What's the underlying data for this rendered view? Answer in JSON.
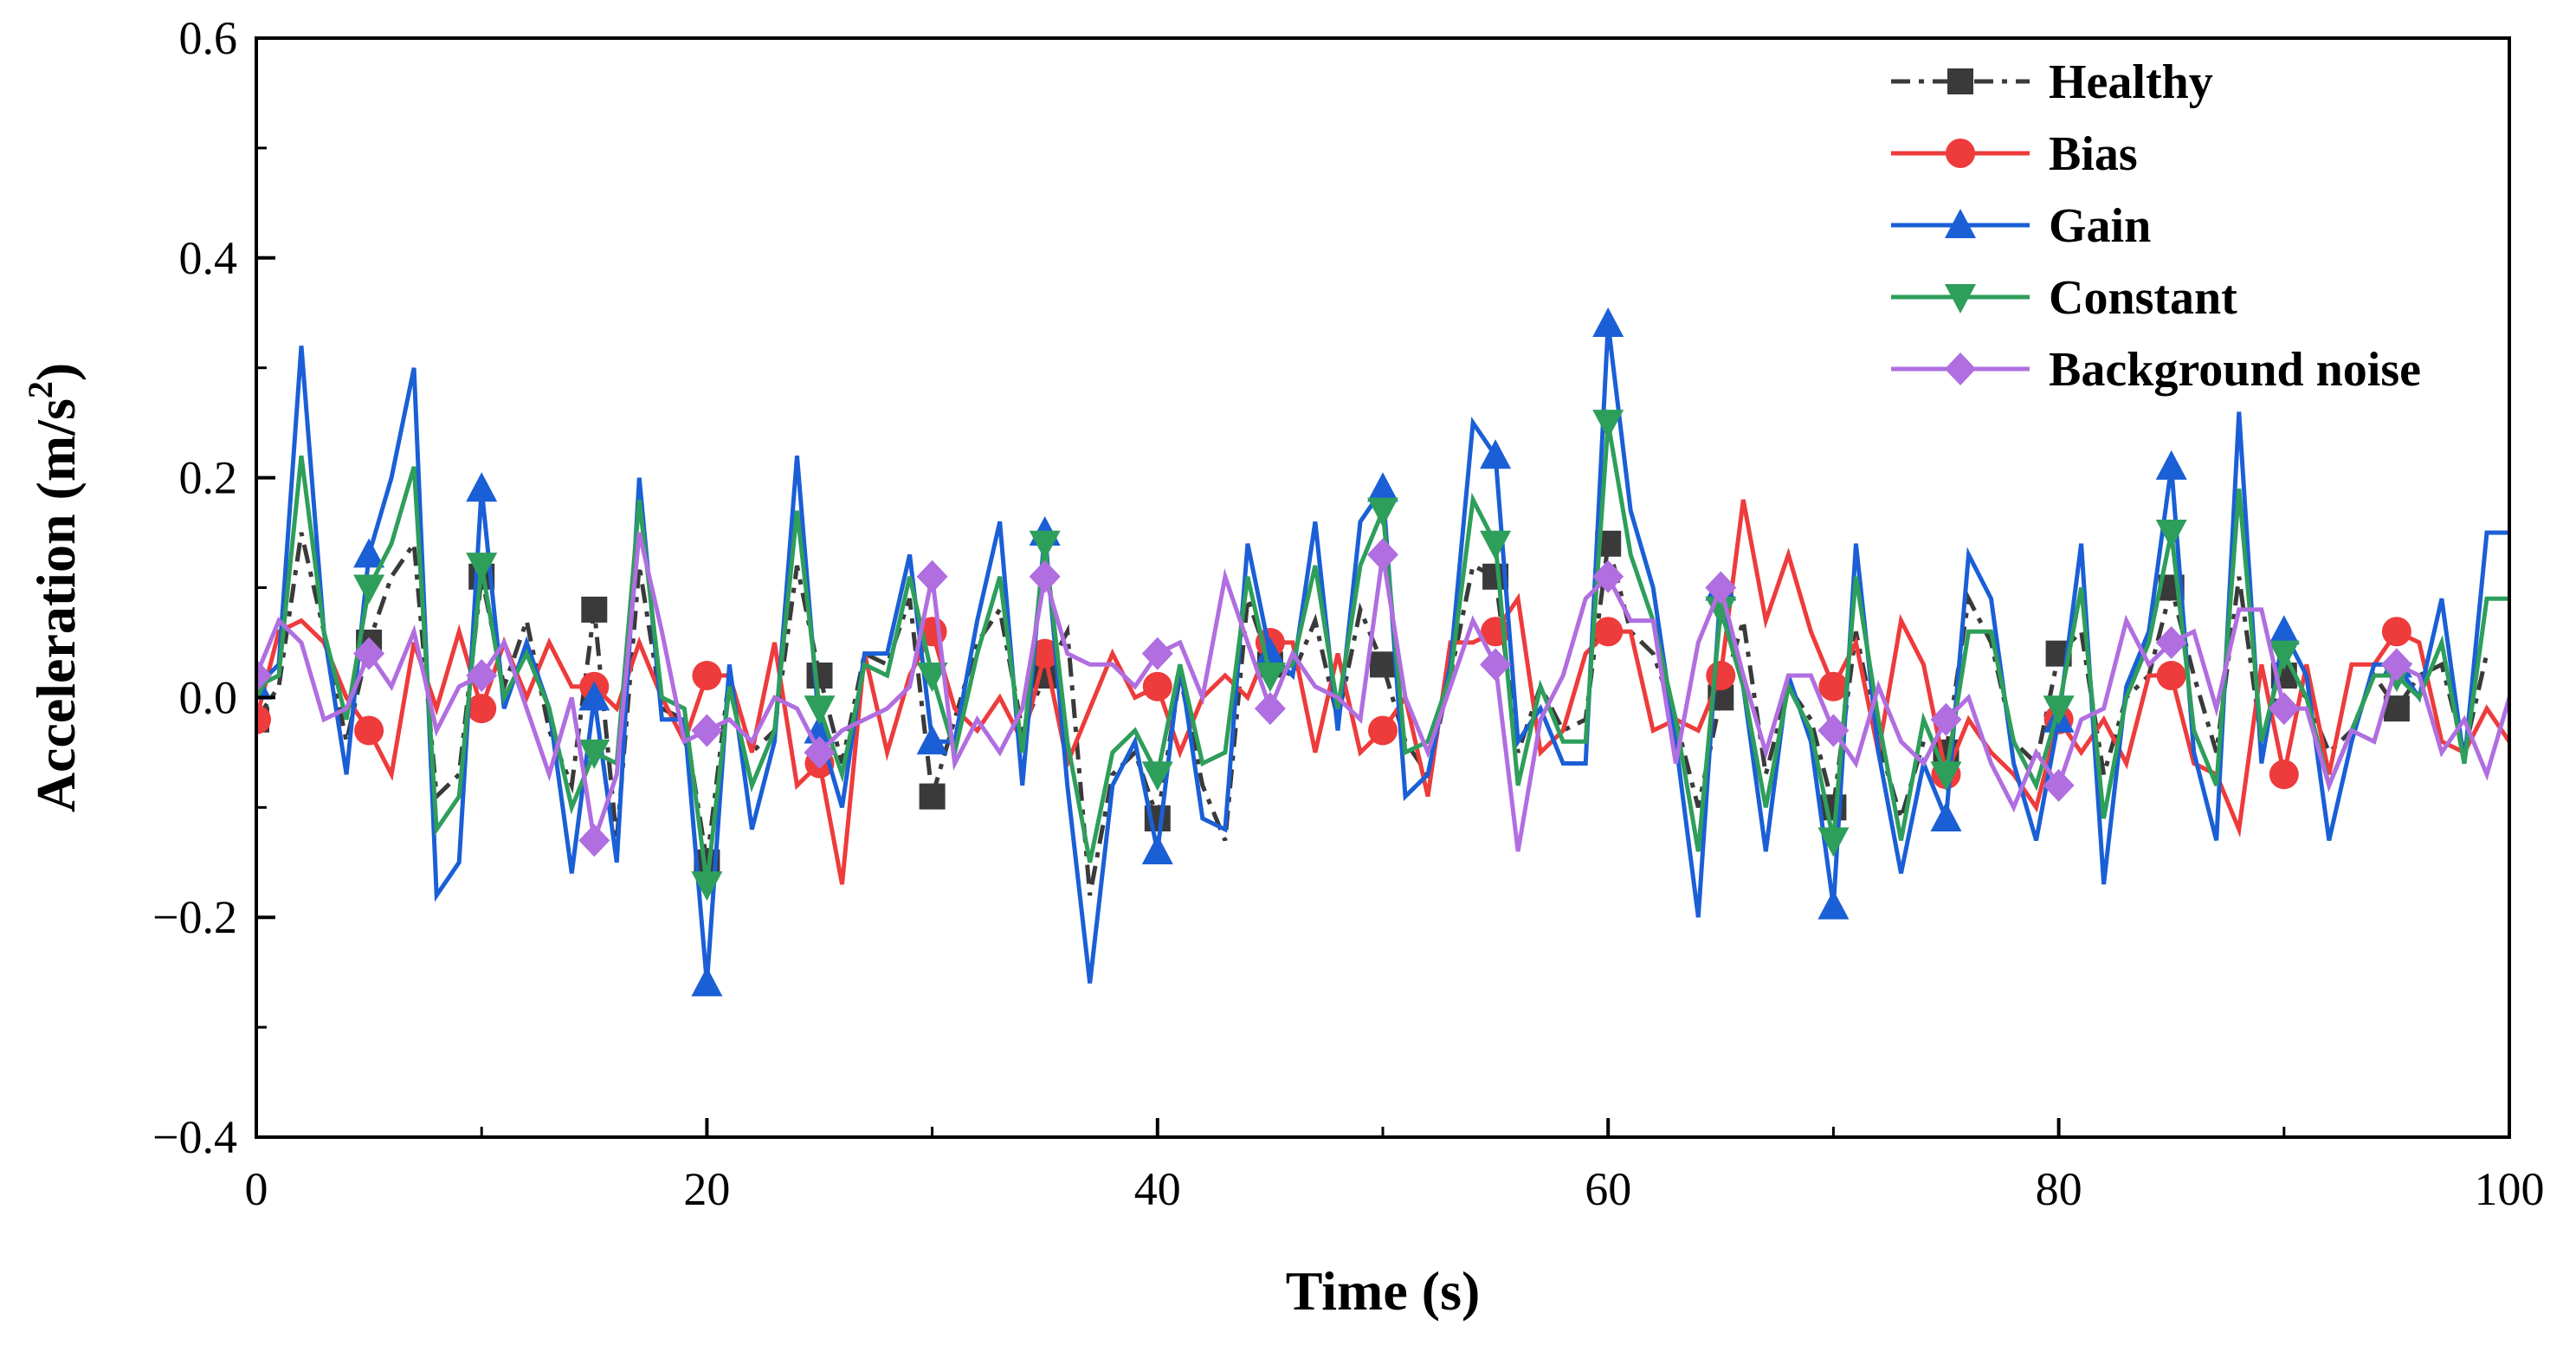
{
  "chart_data": {
    "type": "line",
    "title": "",
    "xlabel": "Time (s)",
    "ylabel_main": "Acceleration (m/s",
    "ylabel_sup": "2",
    "ylabel_close": ")",
    "xlim": [
      0,
      100
    ],
    "ylim": [
      -0.4,
      0.6
    ],
    "xticks": [
      0,
      20,
      40,
      60,
      80,
      100
    ],
    "xtick_labels": [
      "0",
      "20",
      "40",
      "60",
      "80",
      "100"
    ],
    "yticks": [
      -0.4,
      -0.2,
      0.0,
      0.2,
      0.4,
      0.6
    ],
    "ytick_labels": [
      "−0.4",
      "−0.2",
      "0.0",
      "0.2",
      "0.4",
      "0.6"
    ],
    "grid": false,
    "legend_position": "top-right",
    "series": [
      {
        "name": "Healthy",
        "color": "#3a3a3a",
        "dash": "dashdot",
        "marker": "square",
        "x": [
          0,
          1,
          2,
          3,
          4,
          5,
          6,
          7,
          8,
          9,
          10,
          11,
          12,
          13,
          14,
          15,
          16,
          17,
          18,
          19,
          20,
          21,
          22,
          23,
          24,
          25,
          26,
          27,
          28,
          29,
          30,
          31,
          32,
          33,
          34,
          35,
          36,
          37,
          38,
          39,
          40,
          41,
          42,
          43,
          44,
          45,
          46,
          47,
          48,
          49,
          50,
          51,
          52,
          53,
          54,
          55,
          56,
          57,
          58,
          59,
          60,
          61,
          62,
          63,
          64,
          65,
          66,
          67,
          68,
          69,
          70,
          71,
          72,
          73,
          74,
          75,
          76,
          77,
          78,
          79,
          80,
          81,
          82,
          83,
          84,
          85,
          86,
          87,
          88,
          89,
          90,
          91,
          92,
          93,
          94,
          95,
          96,
          97,
          98,
          99
        ],
        "values": [
          -0.02,
          0.01,
          0.15,
          0.06,
          -0.04,
          0.05,
          0.11,
          0.14,
          -0.09,
          -0.07,
          0.11,
          0.01,
          0.07,
          -0.03,
          -0.08,
          0.08,
          -0.13,
          0.12,
          -0.01,
          -0.02,
          -0.15,
          0.02,
          -0.05,
          -0.03,
          0.12,
          0.02,
          -0.06,
          0.04,
          0.03,
          0.09,
          -0.09,
          -0.02,
          0.05,
          0.08,
          -0.03,
          0.02,
          0.06,
          -0.18,
          -0.07,
          -0.05,
          -0.11,
          0.02,
          -0.08,
          -0.13,
          0.09,
          0.03,
          0.02,
          0.07,
          -0.02,
          0.08,
          0.03,
          -0.04,
          -0.07,
          0.02,
          0.12,
          0.11,
          -0.05,
          0.01,
          -0.03,
          -0.02,
          0.14,
          0.06,
          0.04,
          -0.02,
          -0.1,
          0.0,
          0.07,
          -0.07,
          0.01,
          -0.02,
          -0.1,
          0.06,
          -0.04,
          -0.11,
          -0.04,
          -0.05,
          0.09,
          0.05,
          -0.04,
          -0.06,
          0.04,
          0.06,
          -0.07,
          0.0,
          0.02,
          0.1,
          0.02,
          -0.05,
          0.11,
          -0.04,
          0.02,
          0.0,
          -0.05,
          -0.03,
          0.02,
          -0.01,
          0.02,
          0.03,
          -0.05,
          0.04
        ]
      },
      {
        "name": "Bias",
        "color": "#ee3b3b",
        "dash": "solid",
        "marker": "circle",
        "x": [
          0,
          1,
          2,
          3,
          4,
          5,
          6,
          7,
          8,
          9,
          10,
          11,
          12,
          13,
          14,
          15,
          16,
          17,
          18,
          19,
          20,
          21,
          22,
          23,
          24,
          25,
          26,
          27,
          28,
          29,
          30,
          31,
          32,
          33,
          34,
          35,
          36,
          37,
          38,
          39,
          40,
          41,
          42,
          43,
          44,
          45,
          46,
          47,
          48,
          49,
          50,
          51,
          52,
          53,
          54,
          55,
          56,
          57,
          58,
          59,
          60,
          61,
          62,
          63,
          64,
          65,
          66,
          67,
          68,
          69,
          70,
          71,
          72,
          73,
          74,
          75,
          76,
          77,
          78,
          79,
          80,
          81,
          82,
          83,
          84,
          85,
          86,
          87,
          88,
          89,
          90,
          91,
          92,
          93,
          94,
          95,
          96,
          97,
          98,
          99,
          100
        ],
        "values": [
          -0.02,
          0.06,
          0.07,
          0.05,
          0.0,
          -0.03,
          -0.07,
          0.05,
          -0.01,
          0.06,
          -0.01,
          0.05,
          0.0,
          0.05,
          0.01,
          0.01,
          -0.01,
          0.05,
          0.0,
          -0.04,
          0.02,
          0.02,
          -0.05,
          0.05,
          -0.08,
          -0.06,
          -0.17,
          0.04,
          -0.05,
          0.02,
          0.06,
          -0.01,
          -0.03,
          0.0,
          -0.04,
          0.04,
          -0.06,
          -0.01,
          0.04,
          0.0,
          0.01,
          -0.05,
          0.0,
          0.02,
          0.0,
          0.05,
          0.05,
          -0.05,
          0.04,
          -0.05,
          -0.03,
          0.0,
          -0.09,
          0.05,
          0.05,
          0.06,
          0.09,
          -0.05,
          -0.03,
          0.04,
          0.06,
          0.06,
          -0.03,
          -0.02,
          -0.03,
          0.02,
          0.18,
          0.07,
          0.13,
          0.06,
          0.01,
          0.05,
          -0.05,
          0.07,
          0.03,
          -0.07,
          -0.02,
          -0.05,
          -0.07,
          -0.1,
          -0.02,
          -0.05,
          -0.02,
          -0.06,
          0.02,
          0.02,
          -0.06,
          -0.07,
          -0.12,
          0.03,
          -0.07,
          0.03,
          -0.07,
          0.03,
          0.03,
          0.06,
          0.05,
          -0.04,
          -0.05,
          -0.01,
          -0.04
        ]
      },
      {
        "name": "Gain",
        "color": "#1a5fd6",
        "dash": "solid",
        "marker": "triangle-up",
        "x": [
          0,
          1,
          2,
          3,
          4,
          5,
          6,
          7,
          8,
          9,
          10,
          11,
          12,
          13,
          14,
          15,
          16,
          17,
          18,
          19,
          20,
          21,
          22,
          23,
          24,
          25,
          26,
          27,
          28,
          29,
          30,
          31,
          32,
          33,
          34,
          35,
          36,
          37,
          38,
          39,
          40,
          41,
          42,
          43,
          44,
          45,
          46,
          47,
          48,
          49,
          50,
          51,
          52,
          53,
          54,
          55,
          56,
          57,
          58,
          59,
          60,
          61,
          62,
          63,
          64,
          65,
          66,
          67,
          68,
          69,
          70,
          71,
          72,
          73,
          74,
          75,
          76,
          77,
          78,
          79,
          80,
          81,
          82,
          83,
          84,
          85,
          86,
          87,
          88,
          89,
          90,
          91,
          92,
          93,
          94,
          95,
          96,
          97,
          98,
          99,
          100
        ],
        "values": [
          0.01,
          0.03,
          0.32,
          0.06,
          -0.07,
          0.13,
          0.2,
          0.3,
          -0.18,
          -0.15,
          0.19,
          -0.01,
          0.05,
          -0.01,
          -0.16,
          0.0,
          -0.15,
          0.2,
          -0.02,
          -0.02,
          -0.26,
          0.03,
          -0.12,
          -0.04,
          0.22,
          -0.03,
          -0.1,
          0.04,
          0.04,
          0.13,
          -0.04,
          -0.04,
          0.07,
          0.16,
          -0.08,
          0.15,
          -0.08,
          -0.26,
          -0.08,
          -0.04,
          -0.14,
          0.03,
          -0.11,
          -0.12,
          0.14,
          0.04,
          0.02,
          0.16,
          -0.03,
          0.16,
          0.19,
          -0.09,
          -0.07,
          0.03,
          0.25,
          0.22,
          -0.04,
          -0.01,
          -0.06,
          -0.06,
          0.34,
          0.17,
          0.1,
          -0.04,
          -0.2,
          0.1,
          0.01,
          -0.14,
          0.02,
          -0.04,
          -0.19,
          0.14,
          -0.05,
          -0.16,
          -0.06,
          -0.11,
          0.13,
          0.09,
          -0.06,
          -0.13,
          -0.02,
          0.14,
          -0.17,
          0.01,
          0.06,
          0.21,
          -0.05,
          -0.13,
          0.26,
          -0.06,
          0.06,
          0.02,
          -0.13,
          -0.04,
          0.03,
          0.03,
          0.0,
          0.09,
          -0.06,
          0.15,
          0.15
        ]
      },
      {
        "name": "Constant",
        "color": "#2e9e5b",
        "dash": "solid",
        "marker": "triangle-down",
        "x": [
          0,
          1,
          2,
          3,
          4,
          5,
          6,
          7,
          8,
          9,
          10,
          11,
          12,
          13,
          14,
          15,
          16,
          17,
          18,
          19,
          20,
          21,
          22,
          23,
          24,
          25,
          26,
          27,
          28,
          29,
          30,
          31,
          32,
          33,
          34,
          35,
          36,
          37,
          38,
          39,
          40,
          41,
          42,
          43,
          44,
          45,
          46,
          47,
          48,
          49,
          50,
          51,
          52,
          53,
          54,
          55,
          56,
          57,
          58,
          59,
          60,
          61,
          62,
          63,
          64,
          65,
          66,
          67,
          68,
          69,
          70,
          71,
          72,
          73,
          74,
          75,
          76,
          77,
          78,
          79,
          80,
          81,
          82,
          83,
          84,
          85,
          86,
          87,
          88,
          89,
          90,
          91,
          92,
          93,
          94,
          95,
          96,
          97,
          98,
          99,
          100
        ],
        "values": [
          0.01,
          0.02,
          0.22,
          0.06,
          -0.02,
          0.1,
          0.14,
          0.21,
          -0.12,
          -0.09,
          0.12,
          0.0,
          0.04,
          -0.01,
          -0.1,
          -0.05,
          -0.06,
          0.18,
          0.0,
          -0.01,
          -0.17,
          0.01,
          -0.08,
          -0.03,
          0.17,
          -0.01,
          -0.07,
          0.03,
          0.02,
          0.11,
          0.02,
          -0.05,
          0.04,
          0.11,
          -0.05,
          0.14,
          -0.04,
          -0.15,
          -0.05,
          -0.03,
          -0.07,
          0.03,
          -0.06,
          -0.05,
          0.11,
          0.02,
          0.03,
          0.12,
          -0.01,
          0.12,
          0.17,
          -0.05,
          -0.04,
          0.02,
          0.18,
          0.14,
          -0.08,
          0.01,
          -0.04,
          -0.04,
          0.25,
          0.13,
          0.07,
          -0.02,
          -0.14,
          0.08,
          0.01,
          -0.1,
          0.01,
          -0.03,
          -0.13,
          0.11,
          -0.02,
          -0.13,
          -0.02,
          -0.07,
          0.06,
          0.06,
          -0.04,
          -0.08,
          -0.01,
          0.1,
          -0.11,
          0.0,
          0.05,
          0.15,
          -0.03,
          -0.08,
          0.19,
          -0.04,
          0.04,
          0.0,
          -0.08,
          -0.03,
          0.02,
          0.02,
          0.0,
          0.05,
          -0.06,
          0.09,
          0.09
        ]
      },
      {
        "name": "Background noise",
        "color": "#b06ee0",
        "dash": "solid",
        "marker": "diamond",
        "x": [
          0,
          1,
          2,
          3,
          4,
          5,
          6,
          7,
          8,
          9,
          10,
          11,
          12,
          13,
          14,
          15,
          16,
          17,
          18,
          19,
          20,
          21,
          22,
          23,
          24,
          25,
          26,
          27,
          28,
          29,
          30,
          31,
          32,
          33,
          34,
          35,
          36,
          37,
          38,
          39,
          40,
          41,
          42,
          43,
          44,
          45,
          46,
          47,
          48,
          49,
          50,
          51,
          52,
          53,
          54,
          55,
          56,
          57,
          58,
          59,
          60,
          61,
          62,
          63,
          64,
          65,
          66,
          67,
          68,
          69,
          70,
          71,
          72,
          73,
          74,
          75,
          76,
          77,
          78,
          79,
          80,
          81,
          82,
          83,
          84,
          85,
          86,
          87,
          88,
          89,
          90,
          91,
          92,
          93,
          94,
          95,
          96,
          97,
          98,
          99,
          100
        ],
        "values": [
          0.02,
          0.07,
          0.05,
          -0.02,
          -0.01,
          0.04,
          0.01,
          0.06,
          -0.03,
          0.01,
          0.02,
          0.05,
          -0.01,
          -0.07,
          0.0,
          -0.13,
          -0.07,
          0.15,
          0.06,
          -0.04,
          -0.03,
          -0.02,
          -0.04,
          0.0,
          -0.01,
          -0.05,
          -0.03,
          -0.02,
          -0.01,
          0.01,
          0.11,
          -0.06,
          -0.02,
          -0.05,
          -0.01,
          0.11,
          0.04,
          0.03,
          0.03,
          0.01,
          0.04,
          0.05,
          0.0,
          0.11,
          0.05,
          -0.01,
          0.04,
          0.01,
          0.0,
          -0.02,
          0.13,
          0.0,
          -0.05,
          0.01,
          0.07,
          0.03,
          -0.14,
          -0.02,
          0.02,
          0.09,
          0.11,
          0.07,
          0.07,
          -0.06,
          0.05,
          0.1,
          0.02,
          -0.05,
          0.02,
          0.02,
          -0.03,
          -0.06,
          0.01,
          -0.04,
          -0.06,
          -0.02,
          0.0,
          -0.06,
          -0.1,
          -0.05,
          -0.08,
          -0.02,
          -0.01,
          0.07,
          0.03,
          0.05,
          0.06,
          -0.01,
          0.08,
          0.08,
          -0.01,
          -0.01,
          -0.08,
          -0.03,
          -0.04,
          0.03,
          0.02,
          -0.05,
          -0.02,
          -0.07,
          0.0
        ]
      }
    ]
  }
}
